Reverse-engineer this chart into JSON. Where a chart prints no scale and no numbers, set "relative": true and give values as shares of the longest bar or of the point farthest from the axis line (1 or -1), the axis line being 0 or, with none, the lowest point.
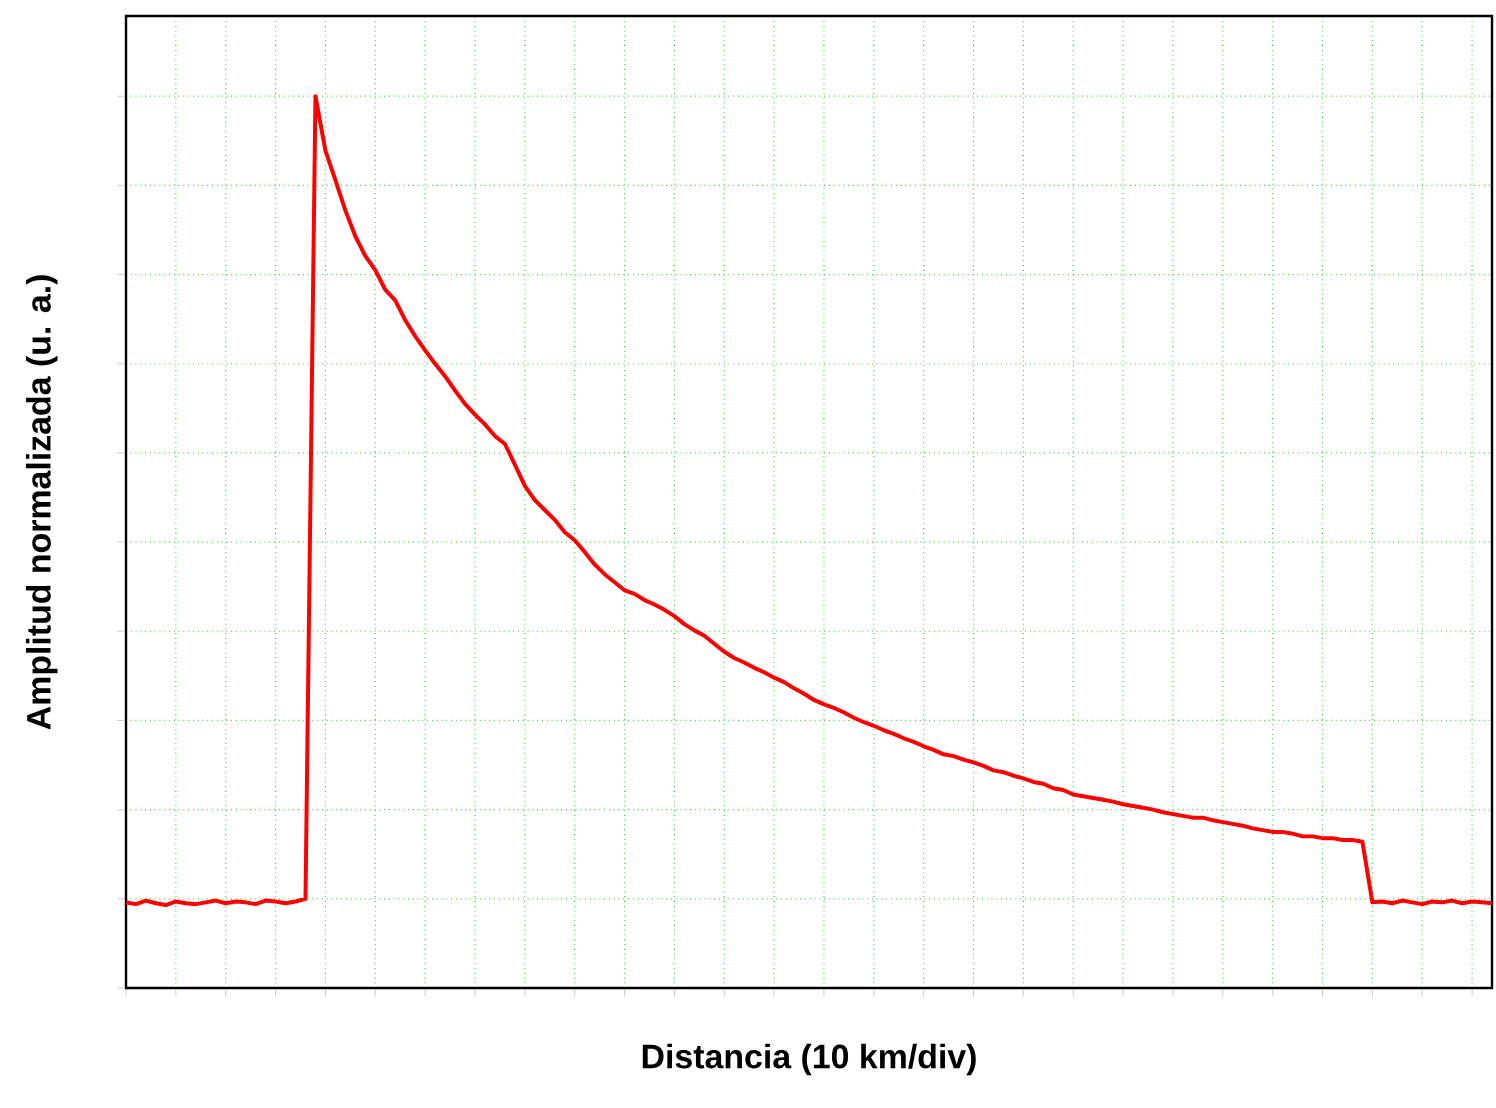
{
  "chart_data": {
    "type": "line",
    "relative": true,
    "xlabel": "Distancia (10 km/div)",
    "ylabel": "Amplitud normalizada (u. a.)",
    "grid": true,
    "color": "#ff0000",
    "categories": [
      null,
      null,
      null,
      null,
      null,
      null,
      null,
      null,
      null,
      null,
      null,
      null,
      null,
      null,
      null,
      null,
      null,
      null,
      null,
      null,
      null,
      null,
      null,
      null,
      null,
      null,
      null,
      null,
      null,
      null,
      null,
      null,
      null,
      null,
      null,
      null,
      null,
      null,
      null,
      null,
      null,
      null,
      null,
      null,
      null,
      null,
      null,
      null,
      null,
      null,
      null,
      null,
      null,
      null,
      null,
      null,
      null,
      null,
      null,
      null,
      null,
      null,
      null,
      null,
      null,
      null,
      null,
      null,
      null,
      null,
      null,
      null,
      null,
      null,
      null,
      null,
      null,
      null,
      null,
      null,
      null,
      null,
      null,
      null,
      null,
      null,
      null,
      null,
      null,
      null,
      null,
      null,
      null,
      null,
      null,
      null,
      null,
      null,
      null,
      null,
      null,
      null,
      null,
      null,
      null,
      null,
      null,
      null,
      null,
      null,
      null,
      null,
      null,
      null,
      null,
      null,
      null,
      null,
      null,
      null,
      null,
      null,
      null,
      null,
      null,
      null,
      null,
      null,
      null,
      null,
      null,
      null,
      null,
      null,
      null,
      null,
      null,
      null
    ],
    "values": [
      0.096,
      0.094,
      0.098,
      0.095,
      0.093,
      0.097,
      0.095,
      0.094,
      0.096,
      0.098,
      0.095,
      0.097,
      0.096,
      0.094,
      0.098,
      0.097,
      0.095,
      0.097,
      0.1,
      1.0,
      0.939,
      0.906,
      0.872,
      0.843,
      0.821,
      0.805,
      0.783,
      0.771,
      0.749,
      0.731,
      0.715,
      0.7,
      0.686,
      0.67,
      0.655,
      0.643,
      0.632,
      0.619,
      0.61,
      0.587,
      0.563,
      0.547,
      0.536,
      0.525,
      0.511,
      0.502,
      0.489,
      0.475,
      0.464,
      0.455,
      0.446,
      0.442,
      0.435,
      0.43,
      0.424,
      0.417,
      0.408,
      0.401,
      0.395,
      0.386,
      0.377,
      0.37,
      0.365,
      0.359,
      0.354,
      0.348,
      0.343,
      0.336,
      0.33,
      0.323,
      0.318,
      0.314,
      0.309,
      0.303,
      0.298,
      0.294,
      0.289,
      0.285,
      0.28,
      0.276,
      0.271,
      0.267,
      0.262,
      0.26,
      0.256,
      0.253,
      0.249,
      0.244,
      0.242,
      0.238,
      0.235,
      0.231,
      0.229,
      0.224,
      0.222,
      0.217,
      0.215,
      0.213,
      0.211,
      0.209,
      0.206,
      0.204,
      0.202,
      0.2,
      0.197,
      0.195,
      0.193,
      0.191,
      0.191,
      0.188,
      0.186,
      0.184,
      0.182,
      0.179,
      0.177,
      0.175,
      0.175,
      0.173,
      0.17,
      0.17,
      0.168,
      0.168,
      0.166,
      0.166,
      0.164,
      0.096,
      0.097,
      0.095,
      0.098,
      0.096,
      0.094,
      0.097,
      0.096,
      0.098,
      0.095,
      0.097,
      0.096,
      0.095
    ]
  }
}
